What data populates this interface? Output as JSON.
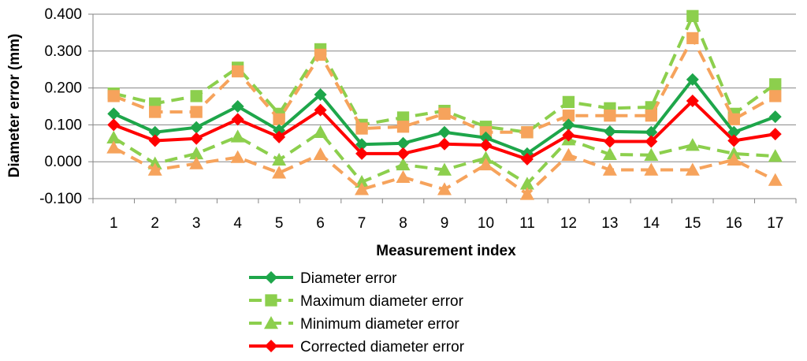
{
  "chart_data": {
    "type": "line",
    "xlabel": "Measurement index",
    "ylabel": "Diameter error (mm)",
    "categories": [
      "1",
      "2",
      "3",
      "4",
      "5",
      "6",
      "7",
      "8",
      "9",
      "10",
      "11",
      "12",
      "13",
      "14",
      "15",
      "16",
      "17"
    ],
    "ylim": [
      -0.1,
      0.4
    ],
    "yticks": [
      -0.1,
      0.0,
      0.1,
      0.2,
      0.3,
      0.4
    ],
    "ytick_labels": [
      "-0.100",
      "0.000",
      "0.100",
      "0.200",
      "0.300",
      "0.400"
    ],
    "grid": "horizontal",
    "legend": "bottom",
    "colors": {
      "green": "#1ea64a",
      "light_green": "#8ccf4d",
      "orange": "#f6a35c",
      "red": "#ff0000"
    },
    "series": [
      {
        "name": "Diameter error",
        "legend": true,
        "color": "#1ea64a",
        "dash": "solid",
        "marker": "diamond",
        "values": [
          0.13,
          0.08,
          0.093,
          0.15,
          0.085,
          0.182,
          0.047,
          0.05,
          0.08,
          0.065,
          0.022,
          0.1,
          0.082,
          0.08,
          0.223,
          0.08,
          0.122
        ]
      },
      {
        "name": "Maximum diameter error",
        "legend": true,
        "color": "#8ccf4d",
        "dash": "dashed",
        "marker": "square",
        "values": [
          0.185,
          0.158,
          0.178,
          0.255,
          0.13,
          0.305,
          0.1,
          0.12,
          0.138,
          0.095,
          0.08,
          0.162,
          0.145,
          0.148,
          0.395,
          0.13,
          0.21
        ]
      },
      {
        "name": "Minimum diameter error",
        "legend": true,
        "color": "#8ccf4d",
        "dash": "dashed",
        "marker": "triangle",
        "values": [
          0.065,
          -0.005,
          0.022,
          0.068,
          0.005,
          0.08,
          -0.055,
          -0.008,
          -0.022,
          0.01,
          -0.06,
          0.06,
          0.02,
          0.018,
          0.045,
          0.022,
          0.015
        ]
      },
      {
        "name": "",
        "legend": false,
        "color": "#f6a35c",
        "dash": "dashed",
        "marker": "square",
        "values": [
          0.178,
          0.135,
          0.135,
          0.245,
          0.115,
          0.29,
          0.09,
          0.095,
          0.13,
          0.08,
          0.08,
          0.125,
          0.125,
          0.125,
          0.335,
          0.115,
          0.178
        ]
      },
      {
        "name": "",
        "legend": false,
        "color": "#f6a35c",
        "dash": "dashed",
        "marker": "triangle",
        "values": [
          0.038,
          -0.022,
          -0.005,
          0.012,
          -0.03,
          0.02,
          -0.075,
          -0.042,
          -0.075,
          -0.008,
          -0.088,
          0.018,
          -0.022,
          -0.022,
          -0.022,
          0.005,
          -0.05
        ]
      },
      {
        "name": "Corrected diameter error",
        "legend": true,
        "color": "#ff0000",
        "dash": "solid",
        "marker": "diamond",
        "values": [
          0.1,
          0.057,
          0.063,
          0.115,
          0.067,
          0.14,
          0.022,
          0.022,
          0.048,
          0.045,
          0.007,
          0.072,
          0.055,
          0.055,
          0.165,
          0.057,
          0.075
        ]
      }
    ]
  }
}
